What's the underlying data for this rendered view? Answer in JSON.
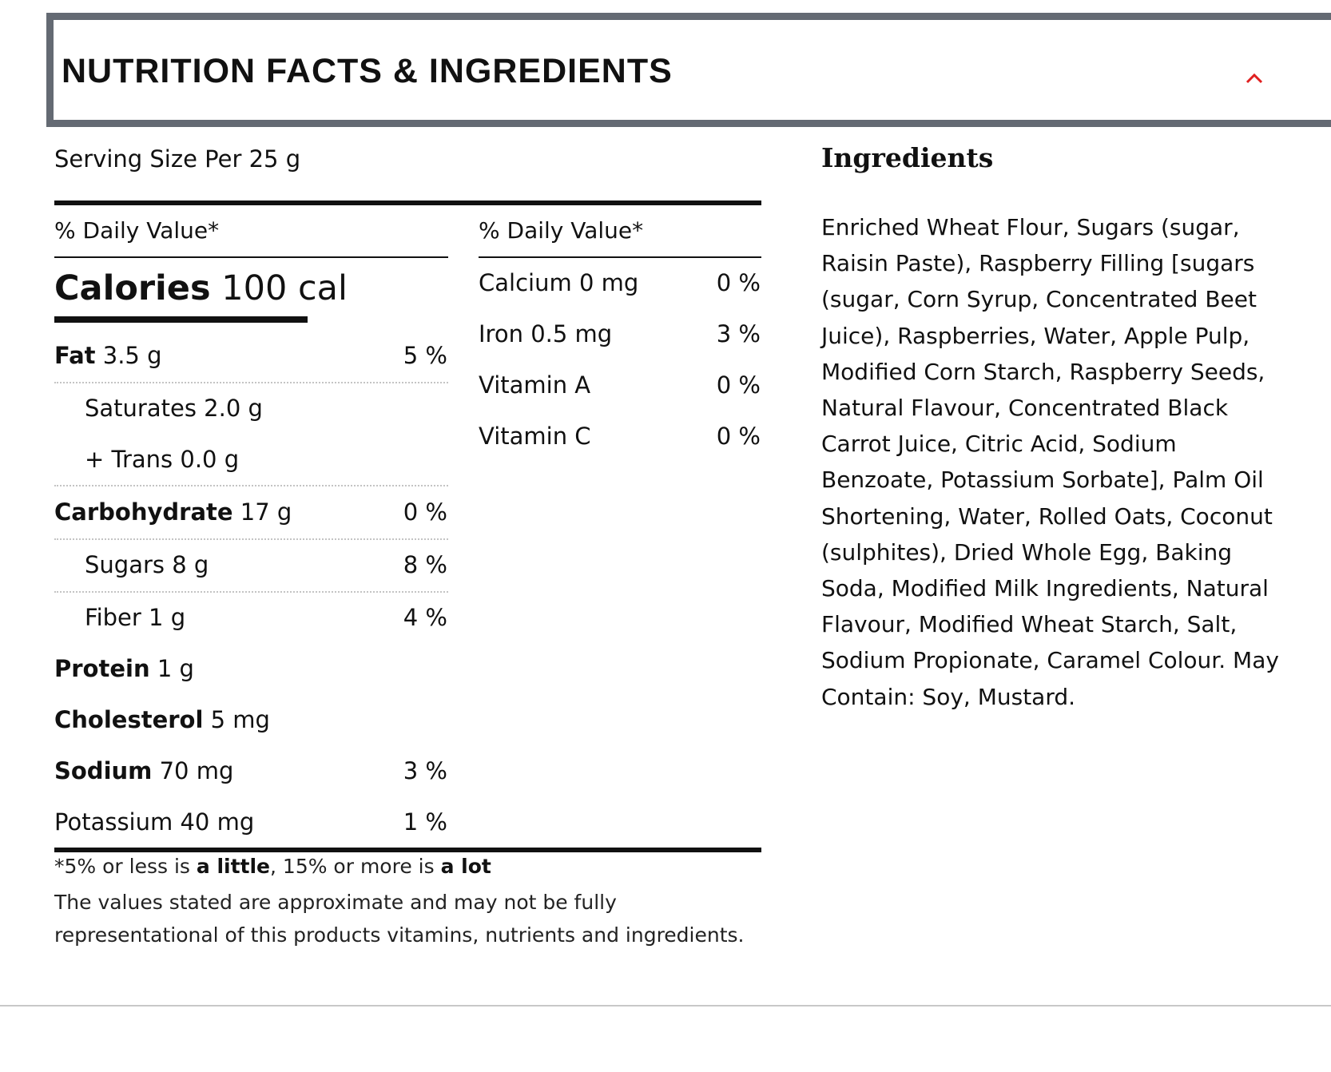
{
  "accordion": {
    "title": "NUTRITION FACTS & INGREDIENTS",
    "toggle_icon": "chevron-up-icon",
    "colors": {
      "border": "#646a73",
      "toggle": "#e02020"
    }
  },
  "nutrition": {
    "serving_size": "Serving Size Per 25 g",
    "daily_value_heading_left": "% Daily Value*",
    "daily_value_heading_right": "% Daily Value*",
    "calories": {
      "label": "Calories",
      "value": "100 cal"
    },
    "nutrients": [
      {
        "label": "Fat",
        "amount": "3.5 g",
        "percent": "5 %"
      },
      {
        "label": "Saturates",
        "amount": "2.0 g",
        "percent": ""
      },
      {
        "label": "+ Trans",
        "amount": "0.0 g",
        "percent": ""
      },
      {
        "label": "Carbohydrate",
        "amount": "17 g",
        "percent": "0 %"
      },
      {
        "label": "Sugars",
        "amount": "8 g",
        "percent": "8 %"
      },
      {
        "label": "Fiber",
        "amount": "1 g",
        "percent": "4 %"
      },
      {
        "label": "Protein",
        "amount": "1 g",
        "percent": ""
      },
      {
        "label": "Cholesterol",
        "amount": "5 mg",
        "percent": ""
      },
      {
        "label": "Sodium",
        "amount": "70 mg",
        "percent": "3 %"
      },
      {
        "label": "Potassium",
        "amount": "40 mg",
        "percent": "1 %"
      }
    ],
    "minerals": [
      {
        "label": "Calcium",
        "amount": "0 mg",
        "percent": "0 %"
      },
      {
        "label": "Iron",
        "amount": "0.5 mg",
        "percent": "3 %"
      },
      {
        "label": "Vitamin A",
        "amount": "",
        "percent": "0 %"
      },
      {
        "label": "Vitamin C",
        "amount": "",
        "percent": "0 %"
      }
    ],
    "footnote": {
      "prefix": "*5% or less is ",
      "little": "a little",
      "middle": ", 15% or more is ",
      "lot": "a lot"
    },
    "disclaimer": "The values stated are approximate and may not be fully representational of this products vitamins, nutrients and ingredients."
  },
  "ingredients": {
    "title": "Ingredients",
    "text": "Enriched Wheat Flour, Sugars (sugar, Raisin Paste), Raspberry Filling [sugars (sugar, Corn Syrup, Concentrated Beet Juice), Raspberries, Water, Apple Pulp, Modified Corn Starch, Raspberry Seeds, Natural Flavour, Concentrated Black Carrot Juice, Citric Acid, Sodium Benzoate, Potassium Sorbate], Palm Oil Shortening, Water, Rolled Oats, Coconut (sulphites), Dried Whole Egg, Baking Soda, Modified Milk Ingredients, Natural Flavour, Modified Wheat Starch, Salt, Sodium Propionate, Caramel Colour. May Contain: Soy, Mustard."
  }
}
